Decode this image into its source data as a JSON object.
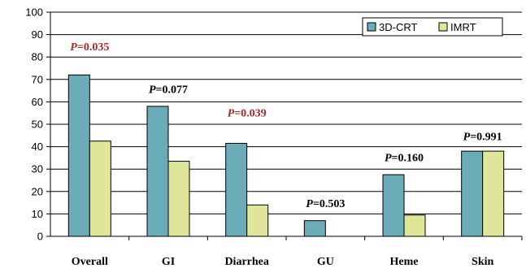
{
  "chart_data": {
    "type": "bar",
    "categories": [
      "Overall",
      "GI",
      "Diarrhea",
      "GU",
      "Heme",
      "Skin"
    ],
    "series": [
      {
        "name": "3D-CRT",
        "color": "#6aadb8",
        "values": [
          72,
          58,
          41.5,
          7,
          27.5,
          38
        ]
      },
      {
        "name": "IMRT",
        "color": "#dfe69a",
        "values": [
          42.5,
          33.5,
          14,
          0,
          9.5,
          38
        ]
      }
    ],
    "ylim": [
      0,
      100
    ],
    "yticks": [
      0,
      10,
      20,
      30,
      40,
      50,
      60,
      70,
      80,
      90,
      100
    ],
    "grid": true,
    "legend_position": "top-right",
    "annotations": [
      {
        "category": "Overall",
        "prefix": "P",
        "text": "=0.035",
        "color": "#a52a2a",
        "level": 83
      },
      {
        "category": "GI",
        "prefix": "P",
        "text": "=0.077",
        "color": "#000000",
        "level": 64
      },
      {
        "category": "Diarrhea",
        "prefix": "P",
        "text": "=0.039",
        "color": "#a52a2a",
        "level": 53.5
      },
      {
        "category": "GU",
        "prefix": "P",
        "text": "=0.503",
        "color": "#000000",
        "level": 13
      },
      {
        "category": "Heme",
        "prefix": "P",
        "text": "=0.160",
        "color": "#000000",
        "level": 33.5
      },
      {
        "category": "Skin",
        "prefix": "P",
        "text": "=0.991",
        "color": "#000000",
        "level": 43
      }
    ]
  }
}
